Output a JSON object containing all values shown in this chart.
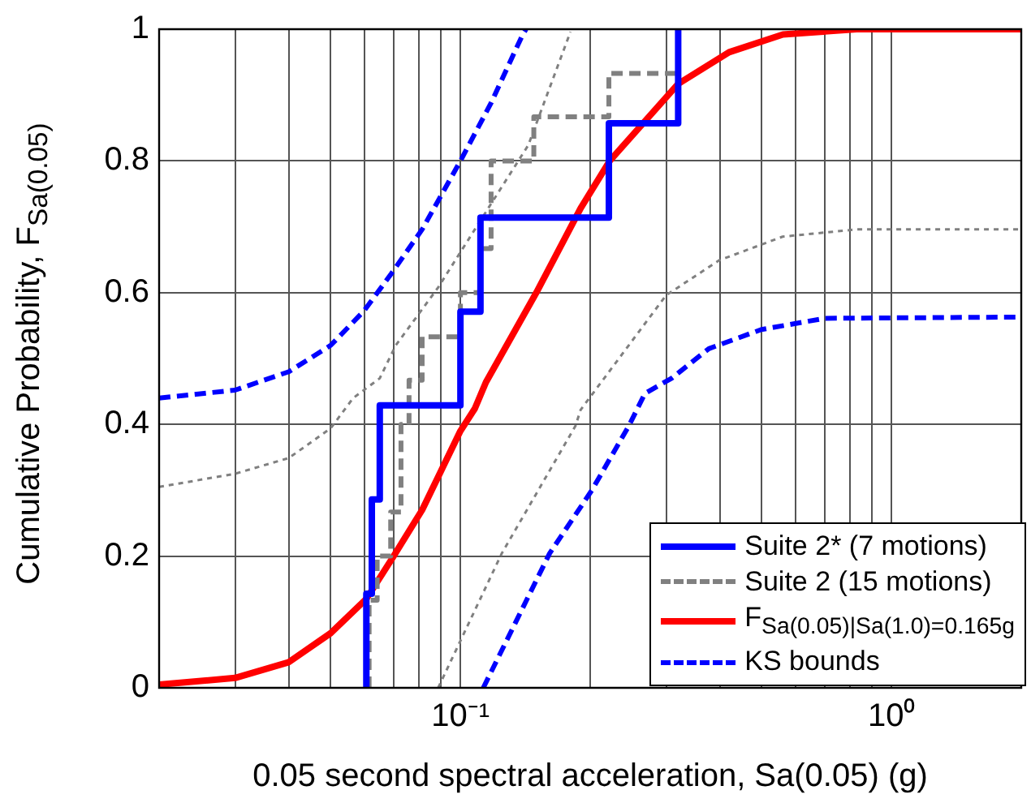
{
  "chart_data": {
    "type": "line",
    "xlabel": "0.05 second spectral acceleration, Sa(0.05) (g)",
    "ylabel": "Cumulative Probability, F$_{Sa(0.05)}$",
    "log": "x",
    "grid": true,
    "legend": "bottom right",
    "marker": "none",
    "xlim": [
      0.02,
      2
    ],
    "xticks": [
      {
        "value": 0.02,
        "label": null
      },
      {
        "value": 0.03,
        "label": null
      },
      {
        "value": 0.04,
        "label": null
      },
      {
        "value": 0.05,
        "label": null
      },
      {
        "value": 0.06,
        "label": null
      },
      {
        "value": 0.07,
        "label": null
      },
      {
        "value": 0.08,
        "label": null
      },
      {
        "value": 0.09,
        "label": null
      },
      {
        "value": 0.1,
        "label": "10⁻¹"
      },
      {
        "value": 0.2,
        "label": null
      },
      {
        "value": 0.3,
        "label": null
      },
      {
        "value": 0.4,
        "label": null
      },
      {
        "value": 0.5,
        "label": null
      },
      {
        "value": 0.6,
        "label": null
      },
      {
        "value": 0.7,
        "label": null
      },
      {
        "value": 0.8,
        "label": null
      },
      {
        "value": 0.9,
        "label": null
      },
      {
        "value": 1,
        "label": "10⁰"
      },
      {
        "value": 2,
        "label": null
      }
    ],
    "ylim": [
      0,
      1
    ],
    "yticks": [
      0,
      0.2,
      0.4,
      0.6,
      0.8,
      1
    ],
    "series": [
      {
        "name": "Suite 2* (7 motions)",
        "type": "step",
        "color": "#0000ff",
        "line_style": "solid",
        "x": [
          0.0605,
          0.0605,
          0.0623,
          0.065,
          0.1,
          0.1113,
          0.221,
          0.32
        ],
        "values": [
          0,
          0.143,
          0.286,
          0.429,
          0.571,
          0.714,
          0.857,
          1.0
        ]
      },
      {
        "name": "Suite 2 (15 motions)",
        "type": "step",
        "color": "#808080",
        "line_style": "dashed",
        "x": [
          0.0614,
          0.0614,
          0.0641,
          0.0689,
          0.0728,
          0.076,
          0.0815,
          0.1,
          0.1113,
          0.1178,
          0.148,
          0.221,
          0.32
        ],
        "values": [
          0,
          0.133,
          0.2,
          0.267,
          0.4,
          0.467,
          0.533,
          0.6,
          0.667,
          0.8,
          0.867,
          0.933,
          1.0
        ]
      },
      {
        "name": "F$_{Sa(0.05)|Sa(1.0)=0.165g}$",
        "type": "line",
        "color": "#ff0000",
        "line_style": "solid",
        "x": [
          0.02,
          0.03,
          0.04,
          0.05,
          0.0605,
          0.07,
          0.0815,
          0.1,
          0.108,
          0.1146,
          0.15,
          0.19,
          0.222,
          0.32,
          0.42,
          0.56,
          0.83,
          2
        ],
        "values": [
          0.005,
          0.015,
          0.039,
          0.083,
          0.135,
          0.2,
          0.27,
          0.39,
          0.424,
          0.464,
          0.6,
          0.728,
          0.8,
          0.917,
          0.965,
          0.992,
          1.0,
          1.0
        ]
      },
      {
        "name": "KS bounds",
        "type": "line",
        "color": "#0000ff",
        "line_style": "dashed",
        "x": [
          0.02,
          0.03,
          0.04,
          0.05,
          0.0597,
          0.069,
          0.0815,
          0.1,
          0.1178,
          0.1395,
          0.142
        ],
        "values": [
          0.44,
          0.452,
          0.48,
          0.52,
          0.572,
          0.628,
          0.696,
          0.8,
          0.888,
          0.992,
          1.0
        ]
      },
      {
        "type": "line",
        "color": "#0000ff",
        "line_style": "dashed",
        "x": [
          0.113,
          0.161,
          0.2018,
          0.246,
          0.268,
          0.309,
          0.377,
          0.499,
          0.7,
          2
        ],
        "values": [
          0,
          0.204,
          0.3,
          0.398,
          0.447,
          0.47,
          0.515,
          0.544,
          0.561,
          0.563
        ]
      },
      {
        "type": "line",
        "color": "#808080",
        "line_style": "dotted",
        "x": [
          0.02,
          0.03,
          0.04,
          0.05,
          0.0564,
          0.065,
          0.0708,
          0.0888,
          0.108,
          0.1437,
          0.18
        ],
        "values": [
          0.305,
          0.325,
          0.349,
          0.394,
          0.44,
          0.47,
          0.52,
          0.608,
          0.696,
          0.824,
          0.996
        ]
      },
      {
        "type": "line",
        "color": "#808080",
        "line_style": "dotted",
        "x": [
          0.0888,
          0.1247,
          0.185,
          0.19,
          0.3,
          0.398,
          0.559,
          0.83,
          2
        ],
        "values": [
          0,
          0.204,
          0.398,
          0.422,
          0.596,
          0.649,
          0.685,
          0.696,
          0.696
        ]
      }
    ]
  }
}
